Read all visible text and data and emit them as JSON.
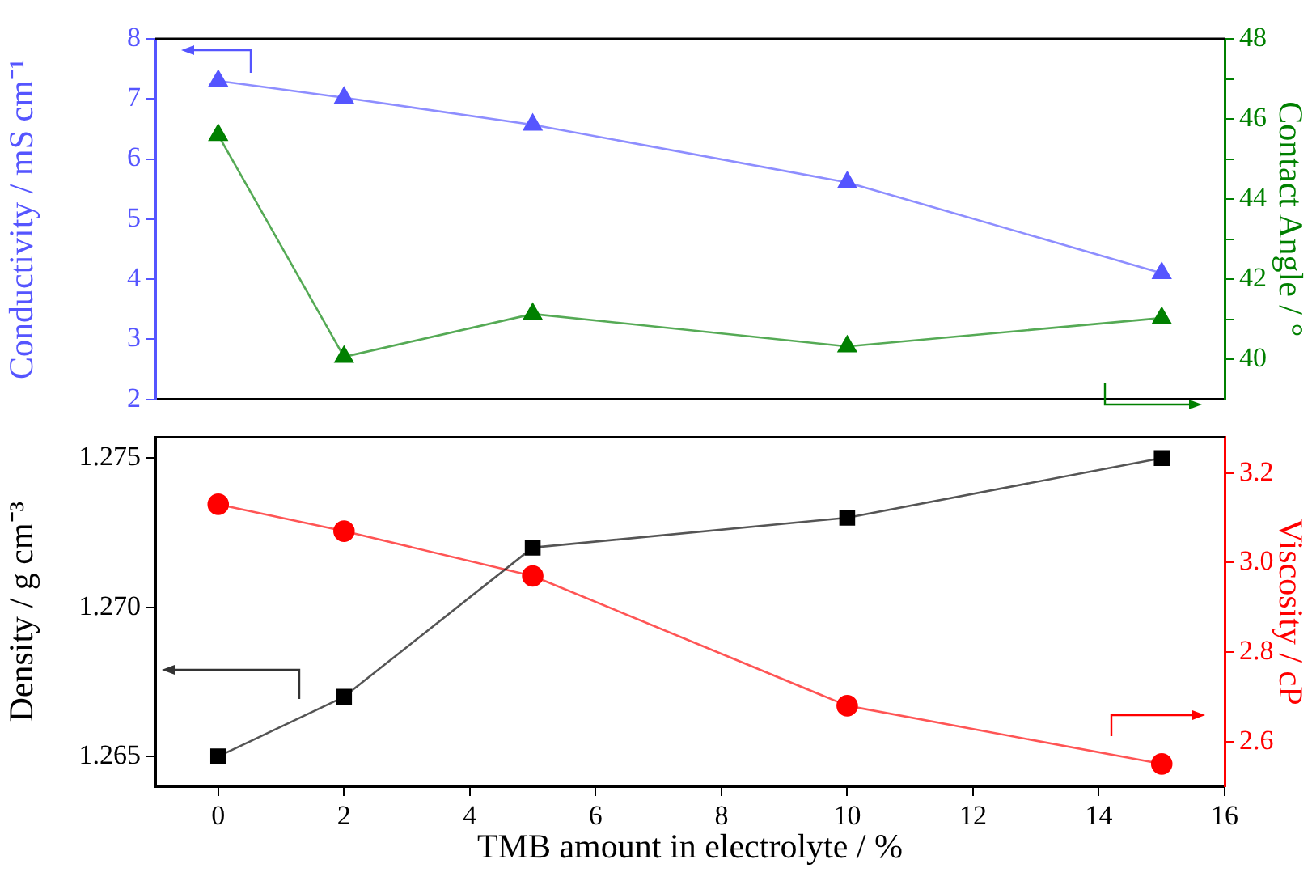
{
  "chart_data": [
    {
      "type": "line",
      "ylabel": "Conductivity / mS cm⁻¹",
      "y2label": "Contact Angle / °",
      "x": [
        0,
        2,
        5,
        10,
        15
      ],
      "series": [
        {
          "color": "#5555ff",
          "values": [
            7.3,
            7.02,
            6.57,
            5.61,
            4.1
          ],
          "marker": "triangle"
        },
        {
          "color": "#008000",
          "values": [
            45.6,
            40.06,
            41.13,
            40.32,
            41.03
          ],
          "marker": "triangle",
          "axis": "y2"
        }
      ],
      "xlim": [
        -1,
        16
      ],
      "xticks": [
        0,
        2,
        4,
        6,
        8,
        10,
        12,
        14,
        16
      ],
      "ylim": [
        2,
        8
      ],
      "yticks": [
        2,
        3,
        4,
        5,
        6,
        7,
        8
      ],
      "y2lim": [
        39,
        48
      ],
      "y2ticks": [
        40,
        {
          "value": 41,
          "label": null
        },
        42,
        {
          "value": 43,
          "label": null
        },
        44,
        {
          "value": 45,
          "label": null
        },
        46,
        {
          "value": 47,
          "label": null
        },
        48
      ],
      "tick_labels": "y",
      "legend": false,
      "grid": false,
      "line_style": "solid"
    },
    {
      "type": "line",
      "xlabel": "TMB amount in electrolyte / %",
      "ylabel": "Density / g cm⁻³",
      "y2label": "Viscosity / cP",
      "x": [
        0,
        2,
        5,
        10,
        15
      ],
      "series": [
        {
          "color": "#000000",
          "values": [
            1.265,
            1.267,
            1.272,
            1.273,
            1.275
          ],
          "marker": "square"
        },
        {
          "color": "#ff0000",
          "values": [
            3.13,
            3.07,
            2.97,
            2.68,
            2.55
          ],
          "marker": "circle",
          "axis": "y2"
        }
      ],
      "xlim": [
        -1,
        16
      ],
      "xticks": [
        0,
        2,
        4,
        6,
        8,
        10,
        12,
        14,
        16
      ],
      "ylim": [
        1.264,
        1.2757
      ],
      "yticks": [
        {
          "value": 1.265,
          "label": "1.265"
        },
        {
          "value": 1.27,
          "label": "1.270"
        },
        {
          "value": 1.275,
          "label": "1.275"
        }
      ],
      "y2lim": [
        2.5,
        3.28
      ],
      "y2ticks": [
        2.6,
        2.8,
        {
          "value": 3,
          "label": "3.0"
        },
        3.2
      ],
      "legend": false,
      "grid": false,
      "line_style": "solid"
    }
  ]
}
